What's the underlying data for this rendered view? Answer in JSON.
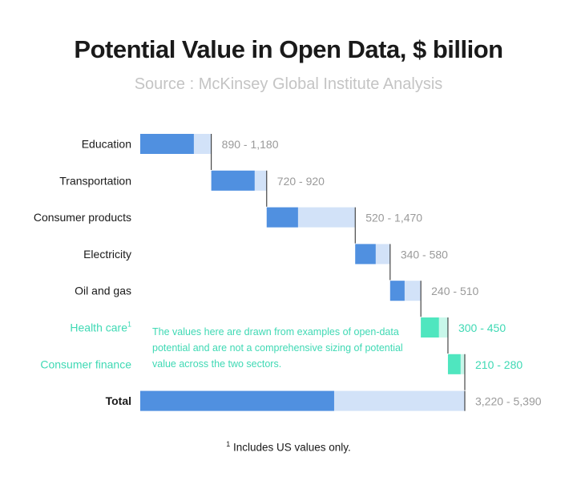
{
  "title": "Potential Value in Open Data, $ billion",
  "subtitle": "Source : McKinsey Global Institute Analysis",
  "note": "The values here are drawn from examples of open-data potential and are not a comprehensive sizing of potential value across the two sectors.",
  "footnote": {
    "marker": "1",
    "text": "Includes US values only."
  },
  "colors": {
    "low_bar": "#5090e0",
    "high_bar": "#d2e2f8",
    "highlight_low": "#4fe6bf",
    "highlight_high": "#c8f7ea",
    "highlight_text": "#3fd9b4",
    "label_text": "#1a1a1a",
    "value_text": "#9a9a9a"
  },
  "chart_data": {
    "type": "bar",
    "subtype": "waterfall-range",
    "categories": [
      "Education",
      "Transportation",
      "Consumer products",
      "Electricity",
      "Oil and gas",
      "Health care",
      "Consumer finance",
      "Total"
    ],
    "category_superscripts": [
      "",
      "",
      "",
      "",
      "",
      "1",
      "",
      ""
    ],
    "highlighted": [
      false,
      false,
      false,
      false,
      false,
      true,
      true,
      false
    ],
    "bold": [
      false,
      false,
      false,
      false,
      false,
      false,
      false,
      true
    ],
    "low": [
      890,
      720,
      520,
      340,
      240,
      300,
      210,
      3220
    ],
    "high": [
      1180,
      920,
      1470,
      580,
      510,
      450,
      280,
      5390
    ],
    "value_labels": [
      "890 - 1,180",
      "720 - 920",
      "520 - 1,470",
      "340 - 580",
      "240 - 510",
      "300 - 450",
      "210 - 280",
      "3,220 - 5,390"
    ],
    "xlim": [
      0,
      5390
    ]
  }
}
